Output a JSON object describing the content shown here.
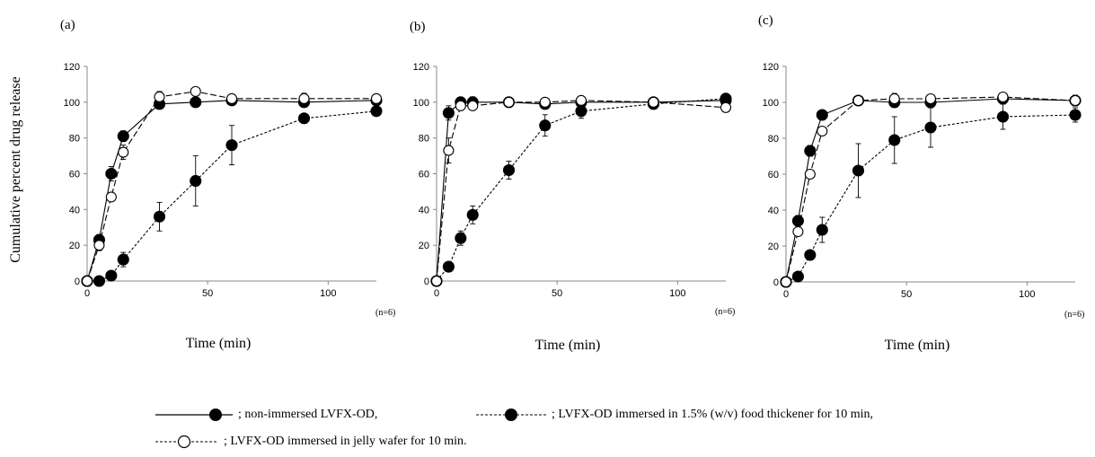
{
  "figure": {
    "y_axis_label": "Cumulative percent drug release",
    "panels": [
      {
        "label": "(a)",
        "xlabel": "Time (min)",
        "n_note": "(n=6)"
      },
      {
        "label": "(b)",
        "xlabel": "Time (min)",
        "n_note": "(n=6)"
      },
      {
        "label": "(c)",
        "xlabel": "Time (min)",
        "n_note": "(n=6)"
      }
    ]
  },
  "legend": {
    "non_immersed": "; non-immersed LVFX-OD,",
    "food_thickener": "; LVFX-OD immersed in 1.5% (w/v) food thickener for 10 min,",
    "jelly_wafer": "; LVFX-OD immersed in jelly wafer for 10 min."
  },
  "chart_data": [
    {
      "type": "line",
      "title": "(a)",
      "xlabel": "Time (min)",
      "ylabel": "Cumulative percent drug release",
      "xlim": [
        0,
        120
      ],
      "ylim": [
        0,
        120
      ],
      "xticks": [
        0,
        50,
        100
      ],
      "yticks": [
        0,
        20,
        40,
        60,
        80,
        100,
        120
      ],
      "series": [
        {
          "name": "; non-immersed LVFX-OD,",
          "style": "solid-filled",
          "x": [
            0,
            5,
            10,
            15,
            30,
            45,
            60,
            90,
            120
          ],
          "y": [
            0,
            23,
            60,
            81,
            99,
            100,
            101,
            100,
            101
          ],
          "err": [
            0,
            3,
            4,
            3,
            1,
            1,
            1,
            1,
            1
          ]
        },
        {
          "name": "; LVFX-OD immersed in 1.5% (w/v) food thickener for 10 min,",
          "style": "dashed-filled",
          "x": [
            0,
            5,
            10,
            15,
            30,
            45,
            60,
            90,
            120
          ],
          "y": [
            0,
            0,
            3,
            12,
            36,
            56,
            76,
            91,
            95
          ],
          "err": [
            0,
            0,
            1,
            4,
            8,
            14,
            11,
            1,
            1
          ]
        },
        {
          "name": "; LVFX-OD immersed in jelly wafer for 10 min.",
          "style": "longdash-open",
          "x": [
            0,
            5,
            10,
            15,
            30,
            45,
            60,
            90,
            120
          ],
          "y": [
            0,
            20,
            47,
            72,
            103,
            106,
            102,
            102,
            102
          ],
          "err": [
            0,
            3,
            2,
            4,
            3,
            1,
            1,
            3,
            1
          ]
        }
      ]
    },
    {
      "type": "line",
      "title": "(b)",
      "xlabel": "Time (min)",
      "ylabel": "Cumulative percent drug release",
      "xlim": [
        0,
        120
      ],
      "ylim": [
        0,
        120
      ],
      "xticks": [
        0,
        50,
        100
      ],
      "yticks": [
        0,
        20,
        40,
        60,
        80,
        100,
        120
      ],
      "series": [
        {
          "name": "; non-immersed LVFX-OD,",
          "style": "solid-filled",
          "x": [
            0,
            5,
            10,
            15,
            30,
            45,
            60,
            90,
            120
          ],
          "y": [
            0,
            94,
            100,
            100,
            100,
            99,
            100,
            100,
            101
          ],
          "err": [
            0,
            4,
            2,
            3,
            1,
            1,
            1,
            1,
            1
          ]
        },
        {
          "name": "; LVFX-OD immersed in 1.5% (w/v) food thickener for 10 min,",
          "style": "dashed-filled",
          "x": [
            0,
            5,
            10,
            15,
            30,
            45,
            60,
            90,
            120
          ],
          "y": [
            0,
            8,
            24,
            37,
            62,
            87,
            95,
            99,
            102
          ],
          "err": [
            0,
            1,
            4,
            5,
            5,
            6,
            4,
            1,
            1
          ]
        },
        {
          "name": "; LVFX-OD immersed in jelly wafer for 10 min.",
          "style": "longdash-open",
          "x": [
            0,
            5,
            10,
            15,
            30,
            45,
            60,
            90,
            120
          ],
          "y": [
            0,
            73,
            98,
            98,
            100,
            100,
            101,
            100,
            97
          ],
          "err": [
            0,
            7,
            2,
            2,
            1,
            1,
            1,
            1,
            1
          ]
        }
      ]
    },
    {
      "type": "line",
      "title": "(c)",
      "xlabel": "Time (min)",
      "ylabel": "Cumulative percent drug release",
      "xlim": [
        0,
        120
      ],
      "ylim": [
        0,
        120
      ],
      "xticks": [
        0,
        50,
        100
      ],
      "yticks": [
        0,
        20,
        40,
        60,
        80,
        100,
        120
      ],
      "series": [
        {
          "name": "; non-immersed LVFX-OD,",
          "style": "solid-filled",
          "x": [
            0,
            5,
            10,
            15,
            30,
            45,
            60,
            90,
            120
          ],
          "y": [
            0,
            34,
            73,
            93,
            101,
            100,
            100,
            102,
            101
          ],
          "err": [
            0,
            3,
            3,
            1,
            1,
            1,
            1,
            1,
            1
          ]
        },
        {
          "name": "; LVFX-OD immersed in 1.5% (w/v) food thickener for 10 min,",
          "style": "dashed-filled",
          "x": [
            0,
            5,
            10,
            15,
            30,
            45,
            60,
            90,
            120
          ],
          "y": [
            0,
            3,
            15,
            29,
            62,
            79,
            86,
            92,
            93
          ],
          "err": [
            0,
            1,
            2,
            7,
            15,
            13,
            11,
            7,
            4
          ]
        },
        {
          "name": "; LVFX-OD immersed in jelly wafer for 10 min.",
          "style": "longdash-open",
          "x": [
            0,
            5,
            10,
            15,
            30,
            45,
            60,
            90,
            120
          ],
          "y": [
            0,
            28,
            60,
            84,
            101,
            102,
            102,
            103,
            101
          ],
          "err": [
            0,
            2,
            2,
            2,
            1,
            3,
            2,
            1,
            3
          ]
        }
      ]
    }
  ]
}
